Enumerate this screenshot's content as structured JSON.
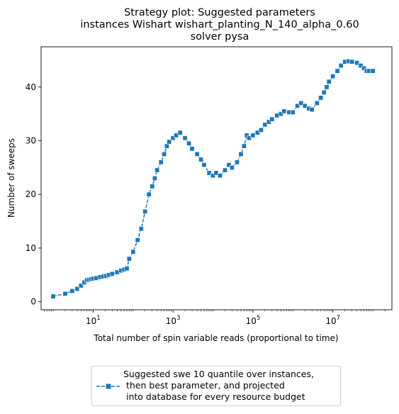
{
  "chart_data": {
    "type": "line",
    "title": [
      "Strategy plot: Suggested parameters",
      "instances Wishart wishart_planting_N_140_alpha_0.60",
      "solver pysa"
    ],
    "xlabel": "Total number of spin variable reads (proportional to time)",
    "ylabel": "Number of sweeps",
    "xscale": "log",
    "xlim": [
      0.5,
      300000000.0
    ],
    "ylim": [
      -1.5,
      47.5
    ],
    "xticks": [
      {
        "value": 10,
        "base": "10",
        "exp": "1"
      },
      {
        "value": 1000,
        "base": "10",
        "exp": "3"
      },
      {
        "value": 100000,
        "base": "10",
        "exp": "5"
      },
      {
        "value": 10000000,
        "base": "10",
        "exp": "7"
      }
    ],
    "yticks": [
      0,
      10,
      20,
      30,
      40
    ],
    "grid": false,
    "legend_placement": "below",
    "color": "#1f77b4",
    "series": [
      {
        "name": "Suggested swe 10 quantile over instances,\n then best parameter, and projected\n into database for every resource budget",
        "marker": "square",
        "x": [
          1,
          2,
          3,
          4,
          5,
          6,
          7,
          8,
          9,
          10,
          12,
          15,
          18,
          21,
          25,
          30,
          40,
          50,
          60,
          70,
          80,
          100,
          130,
          160,
          200,
          250,
          300,
          350,
          400,
          500,
          600,
          700,
          800,
          1000,
          1200,
          1500,
          2000,
          2500,
          3000,
          4000,
          5000,
          6000,
          8000,
          10000,
          12000,
          15000,
          20000,
          25000,
          30000,
          40000,
          50000,
          60000,
          70000,
          80000,
          100000,
          130000,
          160000,
          200000,
          250000,
          300000,
          400000,
          500000,
          600000,
          800000,
          1000000,
          1300000,
          1600000,
          2000000,
          2500000,
          3000000,
          4000000,
          5000000,
          6000000,
          7000000,
          8000000,
          10000000,
          13000000,
          16000000,
          20000000,
          25000000,
          30000000,
          40000000,
          50000000,
          60000000,
          70000000,
          80000000,
          100000000
        ],
        "y": [
          1.0,
          1.5,
          2.0,
          2.4,
          3.0,
          3.6,
          4.0,
          4.1,
          4.2,
          4.3,
          4.4,
          4.6,
          4.7,
          4.8,
          5.0,
          5.2,
          5.5,
          5.8,
          6.0,
          6.2,
          8.0,
          9.3,
          11.5,
          13.6,
          16.8,
          20.0,
          21.5,
          23.0,
          24.5,
          26.0,
          27.5,
          29.0,
          29.8,
          30.5,
          31.0,
          31.5,
          30.5,
          29.5,
          28.5,
          27.5,
          26.5,
          25.5,
          24.0,
          23.5,
          24.0,
          23.5,
          24.5,
          25.5,
          25.0,
          26.0,
          27.5,
          29.0,
          31.0,
          30.5,
          31.0,
          31.5,
          32.0,
          33.0,
          33.5,
          34.0,
          34.7,
          35.0,
          35.5,
          35.3,
          35.3,
          36.5,
          37.0,
          36.5,
          36.0,
          35.8,
          37.0,
          38.0,
          39.0,
          40.0,
          41.0,
          42.0,
          43.0,
          44.0,
          44.7,
          44.8,
          44.7,
          44.5,
          44.0,
          43.5,
          43.0,
          43.0,
          43.0
        ]
      }
    ]
  }
}
